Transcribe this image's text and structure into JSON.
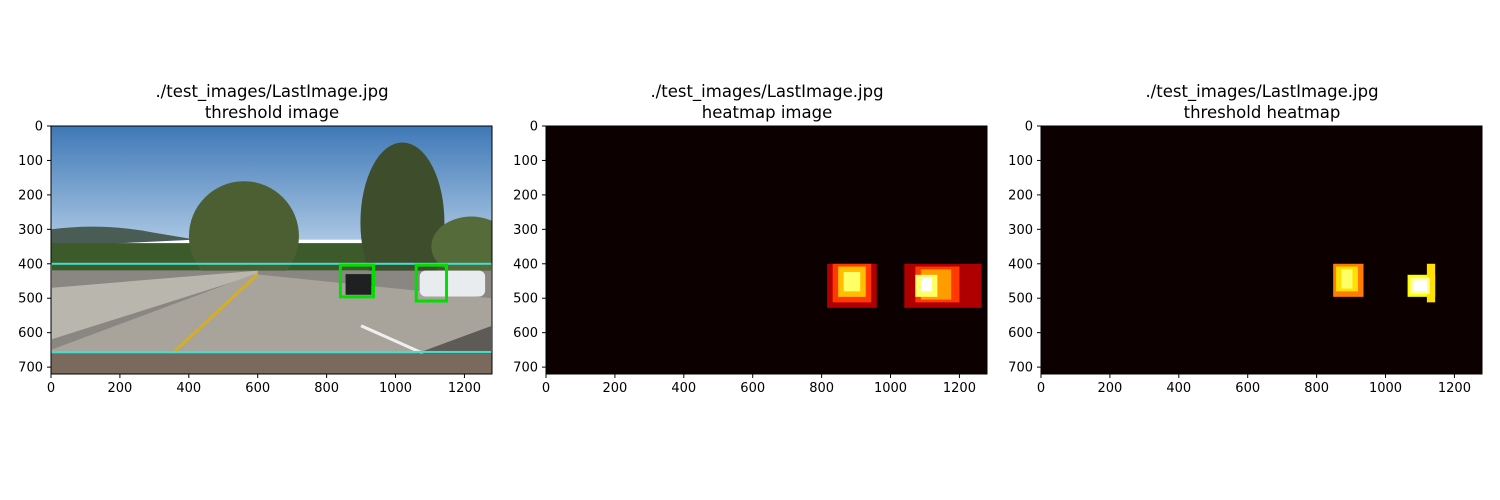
{
  "chart_data": [
    {
      "type": "heatmap",
      "title": "./test_images/LastImage.jpg",
      "subtitle": "threshold image",
      "xlim": [
        0,
        1280
      ],
      "ylim": [
        720,
        0
      ],
      "xticks": [
        "0",
        "200",
        "400",
        "600",
        "800",
        "1000",
        "1200"
      ],
      "yticks": [
        "0",
        "100",
        "200",
        "300",
        "400",
        "500",
        "600",
        "700"
      ],
      "search_region": {
        "x": [
          0,
          1280
        ],
        "y": [
          400,
          656
        ],
        "color": "#40e0d0"
      },
      "detections": [
        {
          "x": [
            840,
            936
          ],
          "y": [
            404,
            496
          ],
          "color": "#00e000"
        },
        {
          "x": [
            1060,
            1148
          ],
          "y": [
            404,
            508
          ],
          "color": "#00e000"
        }
      ]
    },
    {
      "type": "heatmap",
      "title": "./test_images/LastImage.jpg",
      "subtitle": "heatmap image",
      "xlim": [
        0,
        1280
      ],
      "ylim": [
        720,
        0
      ],
      "xticks": [
        "0",
        "200",
        "400",
        "600",
        "800",
        "1000",
        "1200"
      ],
      "yticks": [
        "0",
        "100",
        "200",
        "300",
        "400",
        "500",
        "600",
        "700"
      ],
      "background": "#0c0000",
      "blobs": [
        {
          "x": [
            816,
            960
          ],
          "y": [
            400,
            528
          ],
          "level": 0.25
        },
        {
          "x": [
            832,
            944
          ],
          "y": [
            400,
            512
          ],
          "level": 0.45
        },
        {
          "x": [
            848,
            928
          ],
          "y": [
            408,
            496
          ],
          "level": 0.65
        },
        {
          "x": [
            864,
            912
          ],
          "y": [
            424,
            480
          ],
          "level": 0.85
        },
        {
          "x": [
            1040,
            1264
          ],
          "y": [
            400,
            528
          ],
          "level": 0.25
        },
        {
          "x": [
            1072,
            1200
          ],
          "y": [
            408,
            512
          ],
          "level": 0.45
        },
        {
          "x": [
            1088,
            1176
          ],
          "y": [
            416,
            504
          ],
          "level": 0.6
        },
        {
          "x": [
            1072,
            1136
          ],
          "y": [
            432,
            496
          ],
          "level": 0.85
        },
        {
          "x": [
            1088,
            1120
          ],
          "y": [
            440,
            480
          ],
          "level": 1.0
        }
      ]
    },
    {
      "type": "heatmap",
      "title": "./test_images/LastImage.jpg",
      "subtitle": "threshold heatmap",
      "xlim": [
        0,
        1280
      ],
      "ylim": [
        720,
        0
      ],
      "xticks": [
        "0",
        "200",
        "400",
        "600",
        "800",
        "1000",
        "1200"
      ],
      "yticks": [
        "0",
        "100",
        "200",
        "300",
        "400",
        "500",
        "600",
        "700"
      ],
      "background": "#0c0000",
      "blobs": [
        {
          "x": [
            848,
            936
          ],
          "y": [
            400,
            496
          ],
          "level": 0.55
        },
        {
          "x": [
            856,
            920
          ],
          "y": [
            408,
            480
          ],
          "level": 0.7
        },
        {
          "x": [
            872,
            904
          ],
          "y": [
            416,
            472
          ],
          "level": 0.85
        },
        {
          "x": [
            1064,
            1144
          ],
          "y": [
            432,
            496
          ],
          "level": 0.75
        },
        {
          "x": [
            1120,
            1144
          ],
          "y": [
            400,
            512
          ],
          "level": 0.7
        },
        {
          "x": [
            1072,
            1128
          ],
          "y": [
            440,
            488
          ],
          "level": 0.9
        },
        {
          "x": [
            1080,
            1120
          ],
          "y": [
            448,
            480
          ],
          "level": 1.0
        }
      ]
    }
  ]
}
